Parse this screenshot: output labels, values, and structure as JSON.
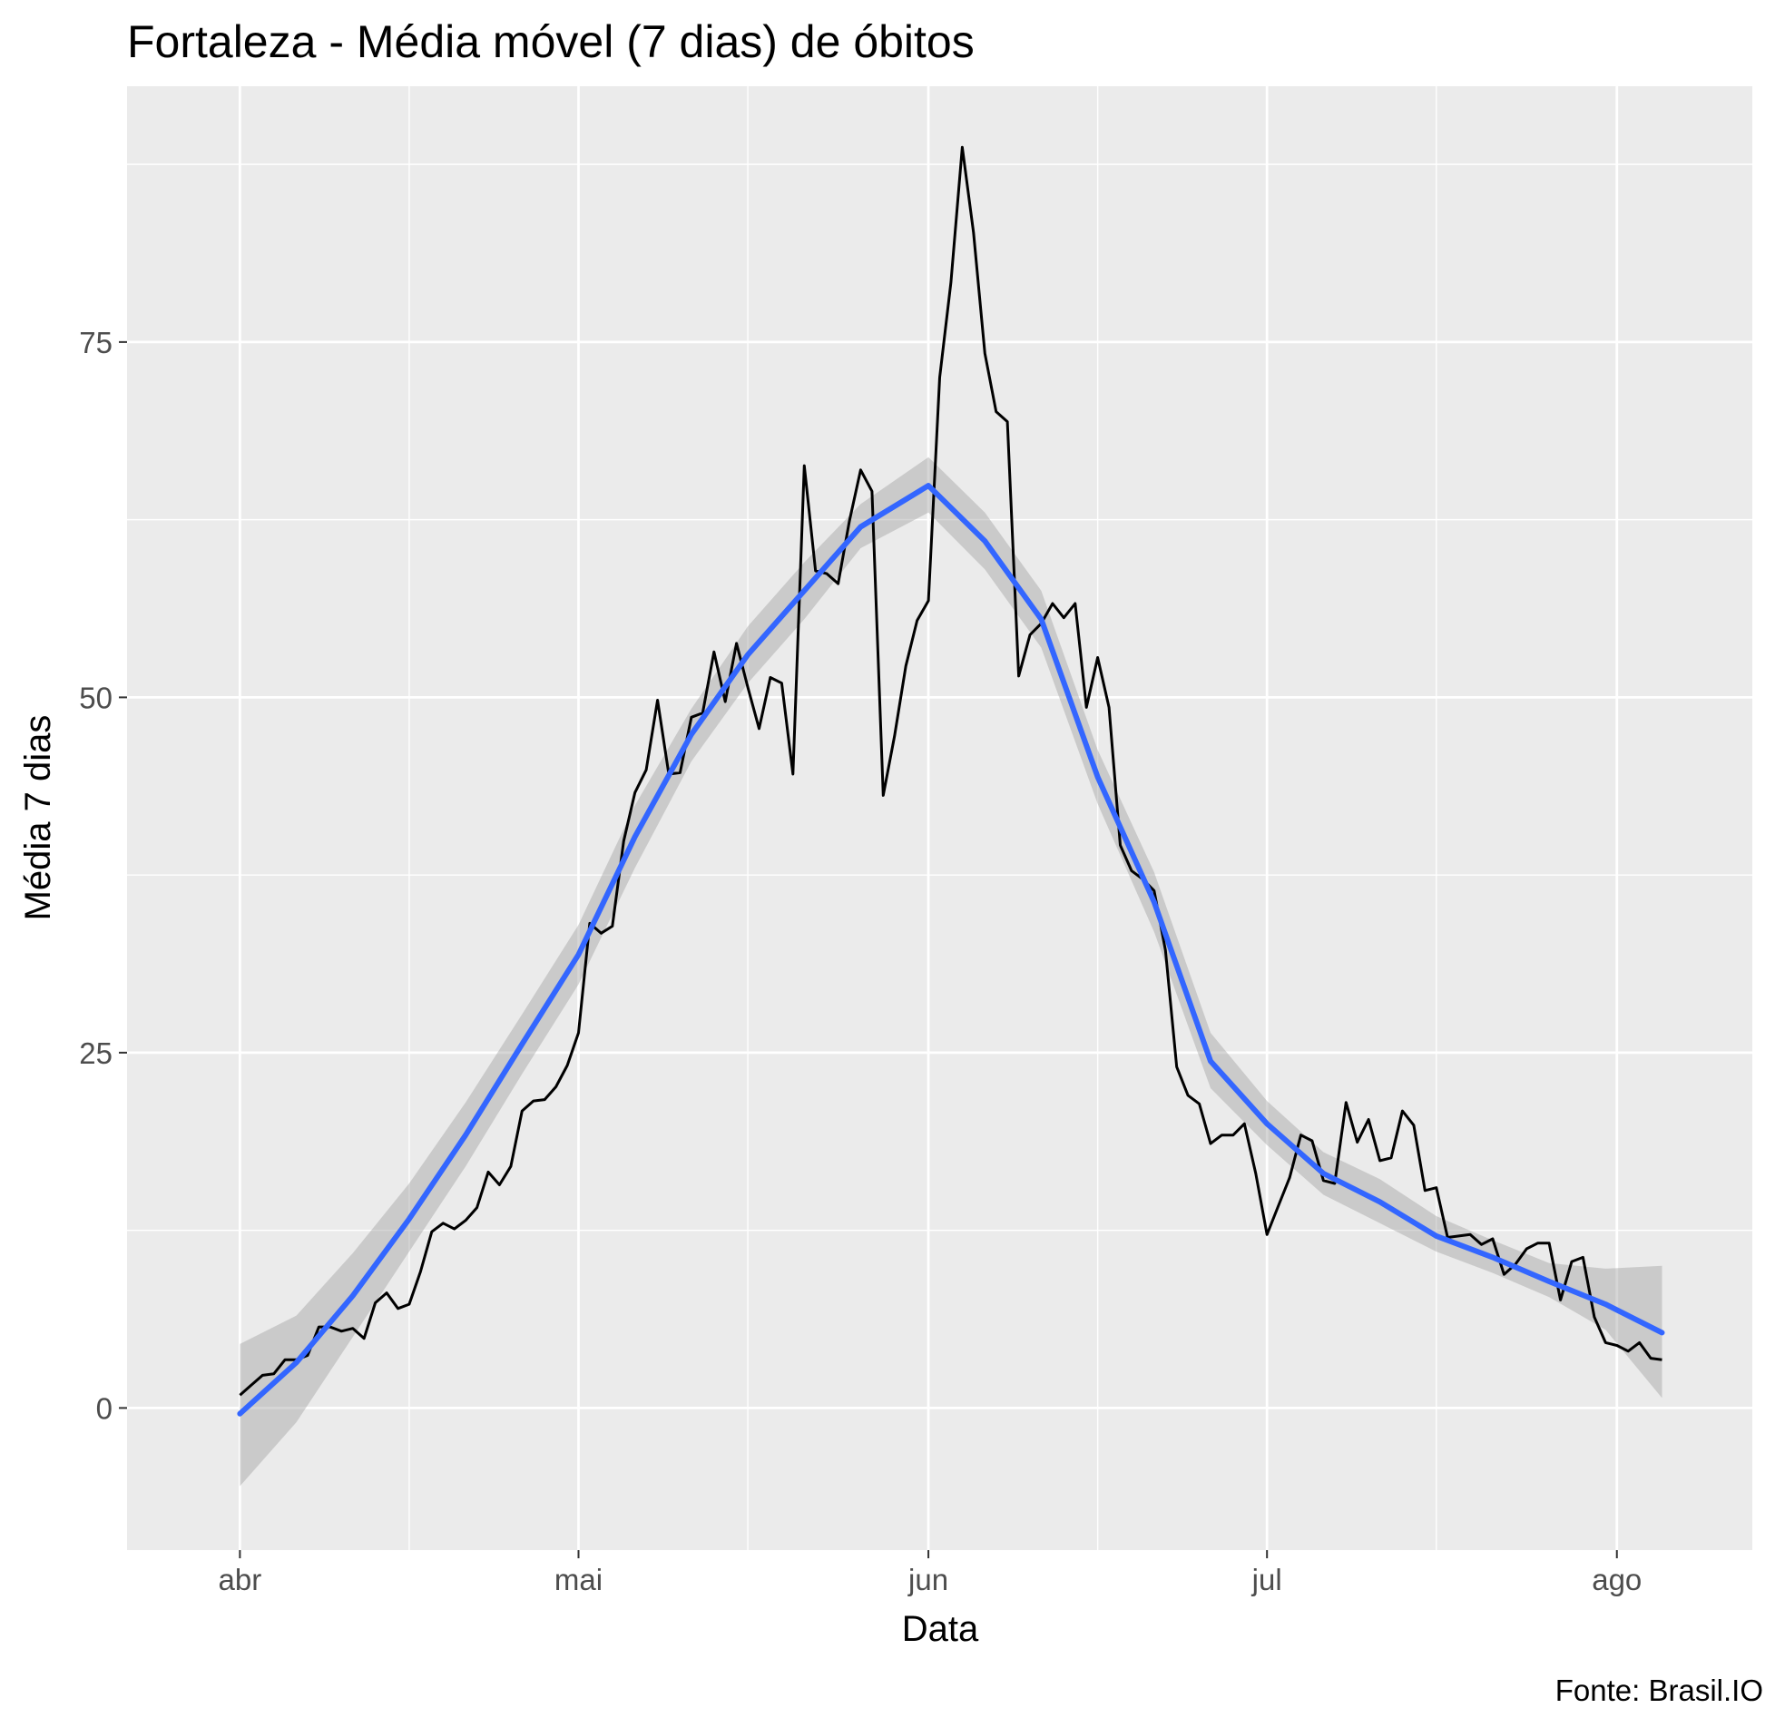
{
  "chart_data": {
    "type": "line",
    "title": "Fortaleza - Média móvel (7 dias) de óbitos",
    "xlabel": "Data",
    "ylabel": "Média 7 dias",
    "caption": "Fonte: Brasil.IO",
    "x_start_date": "2020-04-01",
    "xlim_dates": [
      "2020-03-22",
      "2020-08-13"
    ],
    "ylim": [
      -10,
      93
    ],
    "x_ticks": [
      {
        "label": "abr",
        "date": "2020-04-01"
      },
      {
        "label": "mai",
        "date": "2020-05-01"
      },
      {
        "label": "jun",
        "date": "2020-06-01"
      },
      {
        "label": "jul",
        "date": "2020-07-01"
      },
      {
        "label": "ago",
        "date": "2020-08-01"
      }
    ],
    "x_minor_dates": [
      "2020-04-16",
      "2020-05-16",
      "2020-06-16",
      "2020-07-16"
    ],
    "y_ticks": [
      0,
      25,
      50,
      75
    ],
    "y_minor": [
      12.5,
      37.5,
      62.5,
      87.5
    ],
    "panel_background": "#ebebeb",
    "grid_color": "#ffffff",
    "series": [
      {
        "kind": "observed",
        "color": "#000000",
        "x": [
          "2020-04-01",
          "2020-04-02",
          "2020-04-03",
          "2020-04-04",
          "2020-04-05",
          "2020-04-06",
          "2020-04-07",
          "2020-04-08",
          "2020-04-09",
          "2020-04-10",
          "2020-04-11",
          "2020-04-12",
          "2020-04-13",
          "2020-04-14",
          "2020-04-15",
          "2020-04-16",
          "2020-04-17",
          "2020-04-18",
          "2020-04-19",
          "2020-04-20",
          "2020-04-21",
          "2020-04-22",
          "2020-04-23",
          "2020-04-24",
          "2020-04-25",
          "2020-04-26",
          "2020-04-27",
          "2020-04-28",
          "2020-04-29",
          "2020-04-30",
          "2020-05-01",
          "2020-05-02",
          "2020-05-03",
          "2020-05-04",
          "2020-05-05",
          "2020-05-06",
          "2020-05-07",
          "2020-05-08",
          "2020-05-09",
          "2020-05-10",
          "2020-05-11",
          "2020-05-12",
          "2020-05-13",
          "2020-05-14",
          "2020-05-15",
          "2020-05-16",
          "2020-05-17",
          "2020-05-18",
          "2020-05-19",
          "2020-05-20",
          "2020-05-21",
          "2020-05-22",
          "2020-05-23",
          "2020-05-24",
          "2020-05-25",
          "2020-05-26",
          "2020-05-27",
          "2020-05-28",
          "2020-05-29",
          "2020-05-30",
          "2020-05-31",
          "2020-06-01",
          "2020-06-02",
          "2020-06-03",
          "2020-06-04",
          "2020-06-05",
          "2020-06-06",
          "2020-06-07",
          "2020-06-08",
          "2020-06-09",
          "2020-06-10",
          "2020-06-11",
          "2020-06-12",
          "2020-06-13",
          "2020-06-14",
          "2020-06-15",
          "2020-06-16",
          "2020-06-17",
          "2020-06-18",
          "2020-06-19",
          "2020-06-20",
          "2020-06-21",
          "2020-06-22",
          "2020-06-23",
          "2020-06-24",
          "2020-06-25",
          "2020-06-26",
          "2020-06-27",
          "2020-06-28",
          "2020-06-29",
          "2020-06-30",
          "2020-07-01",
          "2020-07-02",
          "2020-07-03",
          "2020-07-04",
          "2020-07-05",
          "2020-07-06",
          "2020-07-07",
          "2020-07-08",
          "2020-07-09",
          "2020-07-10",
          "2020-07-11",
          "2020-07-12",
          "2020-07-13",
          "2020-07-14",
          "2020-07-15",
          "2020-07-16",
          "2020-07-17",
          "2020-07-18",
          "2020-07-19",
          "2020-07-20",
          "2020-07-21",
          "2020-07-22",
          "2020-07-23",
          "2020-07-24",
          "2020-07-25",
          "2020-07-26",
          "2020-07-27",
          "2020-07-28",
          "2020-07-29",
          "2020-07-30",
          "2020-07-31",
          "2020-08-01",
          "2020-08-02",
          "2020-08-03",
          "2020-08-04",
          "2020-08-05"
        ],
        "y": [
          0.9,
          1.6,
          2.3,
          2.4,
          3.4,
          3.4,
          3.7,
          5.7,
          5.7,
          5.4,
          5.6,
          4.9,
          7.4,
          8.1,
          7.0,
          7.3,
          9.6,
          12.4,
          13.0,
          12.6,
          13.2,
          14.1,
          16.6,
          15.7,
          17.0,
          20.9,
          21.6,
          21.7,
          22.6,
          24.1,
          26.4,
          34.1,
          33.4,
          33.9,
          39.9,
          43.3,
          44.9,
          49.8,
          44.6,
          44.7,
          48.6,
          48.9,
          53.2,
          49.7,
          53.8,
          50.7,
          47.8,
          51.4,
          51.0,
          44.6,
          66.3,
          58.9,
          58.7,
          58.0,
          62.4,
          66.0,
          64.5,
          43.1,
          47.3,
          52.2,
          55.4,
          56.8,
          72.5,
          79.2,
          88.7,
          82.7,
          74.2,
          70.1,
          69.4,
          51.5,
          54.4,
          55.2,
          56.6,
          55.6,
          56.6,
          49.3,
          52.8,
          49.3,
          39.6,
          37.8,
          37.2,
          36.4,
          32.2,
          24.0,
          22.0,
          21.4,
          18.6,
          19.2,
          19.2,
          20.0,
          16.5,
          12.2,
          14.2,
          16.2,
          19.2,
          18.8,
          16.0,
          15.8,
          21.5,
          18.7,
          20.3,
          17.4,
          17.6,
          20.9,
          19.9,
          15.3,
          15.5,
          12.0,
          12.1,
          12.2,
          11.5,
          11.9,
          9.4,
          10.1,
          11.2,
          11.6,
          11.6,
          7.6,
          10.3,
          10.6,
          6.4,
          4.6,
          4.4,
          4.0,
          4.6,
          3.5,
          3.4
        ]
      },
      {
        "kind": "smooth",
        "color": "#3366ff",
        "band_color": "#999999",
        "x": [
          "2020-04-01",
          "2020-04-06",
          "2020-04-11",
          "2020-04-16",
          "2020-04-21",
          "2020-04-26",
          "2020-05-01",
          "2020-05-06",
          "2020-05-11",
          "2020-05-16",
          "2020-05-21",
          "2020-05-26",
          "2020-06-01",
          "2020-06-06",
          "2020-06-11",
          "2020-06-16",
          "2020-06-21",
          "2020-06-26",
          "2020-07-01",
          "2020-07-06",
          "2020-07-11",
          "2020-07-16",
          "2020-07-21",
          "2020-07-26",
          "2020-07-31",
          "2020-08-05"
        ],
        "y": [
          -0.4,
          3.2,
          7.9,
          13.3,
          19.2,
          25.6,
          31.9,
          40.2,
          47.4,
          53.0,
          57.5,
          62.0,
          64.9,
          61.0,
          55.5,
          44.4,
          35.6,
          24.4,
          20.0,
          16.5,
          14.5,
          12.1,
          10.6,
          8.9,
          7.3,
          5.3
        ],
        "ymin": [
          -5.5,
          -1.0,
          5.0,
          11.0,
          17.0,
          23.5,
          29.8,
          38.0,
          45.5,
          51.0,
          55.5,
          60.5,
          63.0,
          59.0,
          53.5,
          42.5,
          33.5,
          22.5,
          18.5,
          15.0,
          13.0,
          11.0,
          9.5,
          7.8,
          5.5,
          0.7
        ],
        "ymax": [
          4.5,
          6.5,
          10.9,
          15.8,
          21.5,
          27.7,
          34.0,
          42.4,
          49.2,
          55.0,
          59.5,
          63.6,
          66.9,
          63.0,
          57.5,
          46.3,
          37.7,
          26.4,
          21.6,
          18.0,
          16.1,
          13.5,
          11.8,
          10.2,
          9.8,
          10.0
        ]
      }
    ]
  }
}
